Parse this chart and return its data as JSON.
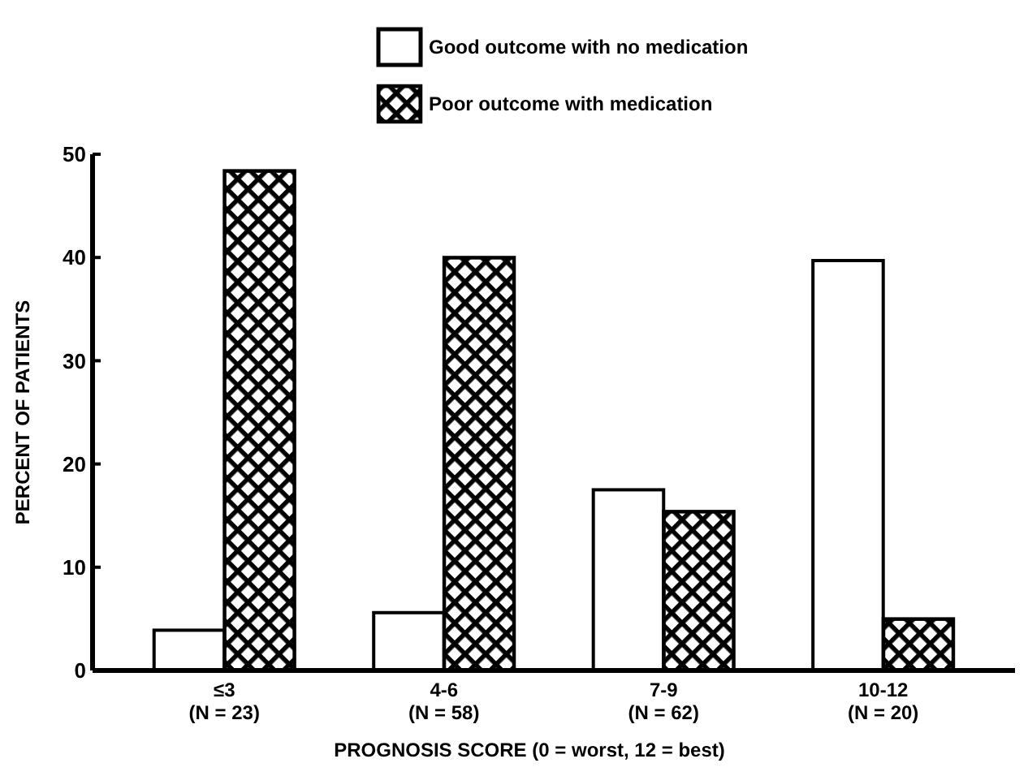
{
  "chart_data": {
    "type": "bar",
    "xlabel": "PROGNOSIS SCORE (0 = worst, 12 = best)",
    "ylabel": "PERCENT OF PATIENTS",
    "categories": [
      "≤3\n(N = 23)",
      "4-6\n(N = 58)",
      "7-9\n(N = 62)",
      "10-12\n(N = 20)"
    ],
    "series": [
      {
        "name": "Good outcome with no medication",
        "color": "#ffffff",
        "values": [
          3.9,
          5.6,
          17.5,
          39.7
        ]
      },
      {
        "name": "Poor outcome with medication",
        "color": "#000000",
        "values": [
          48.4,
          40.0,
          15.4,
          5.0
        ]
      }
    ],
    "ylim": [
      0,
      50
    ],
    "yticks": [
      0,
      10,
      20,
      30,
      40,
      50
    ],
    "legend": "top"
  }
}
